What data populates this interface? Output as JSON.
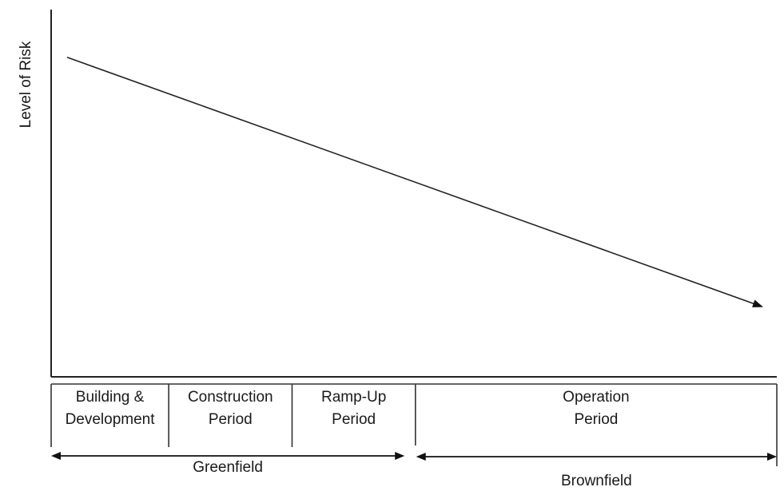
{
  "chart_data": {
    "type": "line",
    "title": "",
    "xlabel": "",
    "ylabel": "Level of Risk",
    "xlim": [
      0,
      100
    ],
    "ylim": [
      0,
      100
    ],
    "grid": false,
    "series": [
      {
        "x": [
          0,
          100
        ],
        "y": [
          87,
          19
        ]
      }
    ],
    "phases": [
      {
        "key": "building",
        "lines": [
          "Building &",
          "Development"
        ],
        "start": 0,
        "end": 16.2
      },
      {
        "key": "construction",
        "lines": [
          "Construction",
          "Period"
        ],
        "start": 16.2,
        "end": 33.2
      },
      {
        "key": "rampup",
        "lines": [
          "Ramp-Up",
          "Period"
        ],
        "start": 33.2,
        "end": 50.2
      },
      {
        "key": "operation",
        "lines": [
          "Operation",
          "Period"
        ],
        "start": 50.2,
        "end": 100
      }
    ],
    "spans": [
      {
        "key": "greenfield",
        "label": "Greenfield",
        "start": 0,
        "end": 48.7
      },
      {
        "key": "brownfield",
        "label": "Brownfield",
        "start": 50.3,
        "end": 100
      }
    ]
  }
}
